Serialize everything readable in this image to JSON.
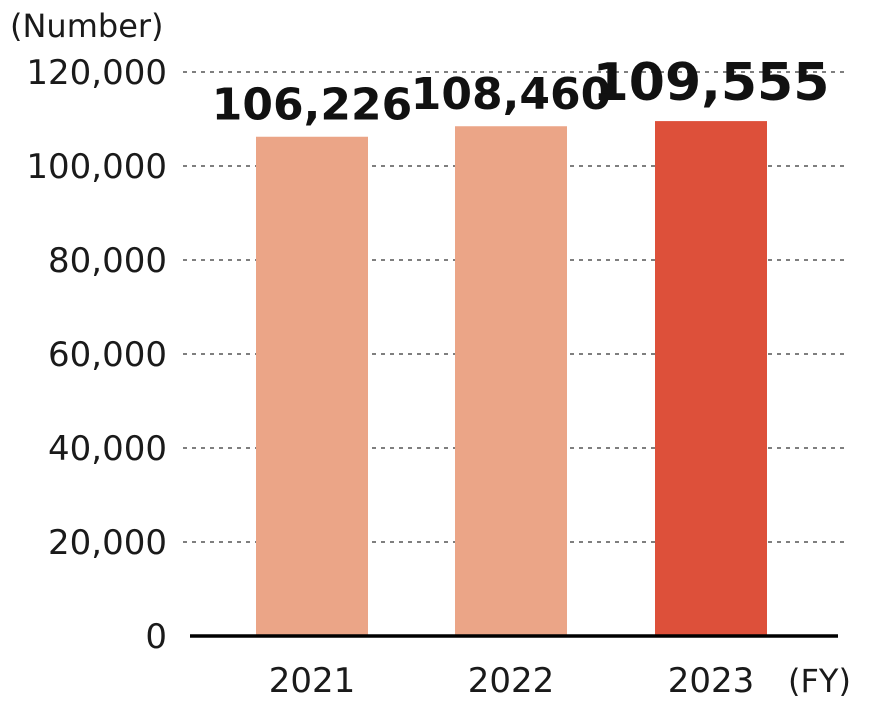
{
  "chart_data": {
    "type": "bar",
    "ylabel": "(Number)",
    "xlabel": "(FY)",
    "categories": [
      "2021",
      "2022",
      "2023"
    ],
    "values": [
      106226,
      108460,
      109555
    ],
    "value_labels": [
      "106,226",
      "108,460",
      "109,555"
    ],
    "ylim": [
      0,
      120000
    ],
    "yticks": [
      0,
      20000,
      40000,
      60000,
      80000,
      100000,
      120000
    ],
    "ytick_labels": [
      "0",
      "20,000",
      "40,000",
      "60,000",
      "80,000",
      "100,000",
      "120,000"
    ],
    "grid": true,
    "bar_colors": [
      "#eba587",
      "#eba587",
      "#dd503a"
    ],
    "highlight_index": 2
  }
}
